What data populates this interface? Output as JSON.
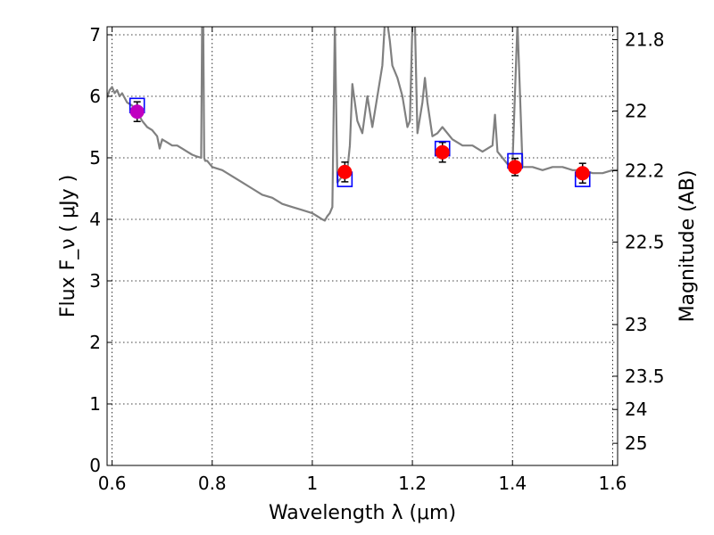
{
  "chart_data": {
    "type": "scatter",
    "title": "",
    "xlabel": "Wavelength  λ (μm)",
    "ylabel": "Flux  F_ν  ( μJy )",
    "ylabel_right": "Magnitude (AB)",
    "xlim": [
      0.59,
      1.61
    ],
    "ylim": [
      0,
      7.13
    ],
    "x_ticks": [
      0.6,
      0.8,
      1.0,
      1.2,
      1.4,
      1.6
    ],
    "x_tick_labels": [
      "0.6",
      "0.8",
      "1",
      "1.2",
      "1.4",
      "1.6"
    ],
    "y_ticks": [
      0,
      1,
      2,
      3,
      4,
      5,
      6,
      7
    ],
    "y_tick_labels": [
      "0",
      "1",
      "2",
      "3",
      "4",
      "5",
      "6",
      "7"
    ],
    "right_ticks": [
      {
        "label": "21.8",
        "flux": 6.92
      },
      {
        "label": "22",
        "flux": 5.76
      },
      {
        "label": "22.2",
        "flux": 4.79
      },
      {
        "label": "22.5",
        "flux": 3.63
      },
      {
        "label": "23",
        "flux": 2.29
      },
      {
        "label": "23.5",
        "flux": 1.45
      },
      {
        "label": "24",
        "flux": 0.91
      },
      {
        "label": "25",
        "flux": 0.36
      }
    ],
    "grid": true,
    "colors": {
      "model": "#808080",
      "observed": "#ff0000",
      "observed_first": "#c000c0",
      "model_box": "#0000ff",
      "errorbar": "#000000"
    },
    "series": [
      {
        "kind": "model_spectrum",
        "x": [
          0.59,
          0.595,
          0.6,
          0.605,
          0.61,
          0.615,
          0.62,
          0.63,
          0.64,
          0.65,
          0.66,
          0.67,
          0.68,
          0.69,
          0.695,
          0.7,
          0.71,
          0.72,
          0.73,
          0.74,
          0.75,
          0.76,
          0.77,
          0.778,
          0.78,
          0.782,
          0.784,
          0.786,
          0.79,
          0.8,
          0.82,
          0.84,
          0.86,
          0.88,
          0.9,
          0.92,
          0.94,
          0.96,
          0.98,
          1.0,
          1.01,
          1.02,
          1.025,
          1.03,
          1.035,
          1.04,
          1.045,
          1.05,
          1.06,
          1.07,
          1.075,
          1.08,
          1.09,
          1.1,
          1.11,
          1.12,
          1.13,
          1.14,
          1.145,
          1.15,
          1.155,
          1.16,
          1.17,
          1.18,
          1.19,
          1.195,
          1.2,
          1.205,
          1.21,
          1.22,
          1.225,
          1.23,
          1.24,
          1.25,
          1.26,
          1.28,
          1.3,
          1.32,
          1.34,
          1.36,
          1.365,
          1.37,
          1.38,
          1.39,
          1.4,
          1.41,
          1.42,
          1.44,
          1.46,
          1.48,
          1.5,
          1.52,
          1.54,
          1.56,
          1.58,
          1.6,
          1.61
        ],
        "y": [
          5.98,
          6.1,
          6.15,
          6.05,
          6.1,
          6.0,
          6.05,
          5.9,
          5.85,
          5.75,
          5.6,
          5.5,
          5.45,
          5.35,
          5.15,
          5.3,
          5.25,
          5.2,
          5.2,
          5.15,
          5.1,
          5.05,
          5.02,
          5.0,
          7.2,
          7.2,
          5.0,
          4.95,
          4.95,
          4.85,
          4.8,
          4.7,
          4.6,
          4.5,
          4.4,
          4.35,
          4.25,
          4.2,
          4.15,
          4.1,
          4.05,
          4.0,
          3.98,
          4.05,
          4.1,
          4.2,
          7.2,
          4.6,
          4.7,
          4.8,
          5.2,
          6.2,
          5.6,
          5.4,
          6.0,
          5.5,
          6.0,
          6.5,
          7.2,
          7.2,
          6.9,
          6.5,
          6.3,
          6.0,
          5.5,
          5.6,
          7.2,
          7.2,
          5.4,
          5.9,
          6.3,
          5.9,
          5.35,
          5.4,
          5.5,
          5.3,
          5.2,
          5.2,
          5.1,
          5.2,
          5.7,
          5.1,
          5.0,
          4.9,
          4.9,
          7.2,
          4.85,
          4.85,
          4.8,
          4.85,
          4.85,
          4.8,
          4.8,
          4.75,
          4.75,
          4.8,
          4.8
        ]
      },
      {
        "kind": "model_photometry",
        "marker": "open-square",
        "x": [
          0.65,
          1.065,
          1.26,
          1.405,
          1.54
        ],
        "y": [
          5.85,
          4.65,
          5.15,
          4.95,
          4.65
        ]
      },
      {
        "kind": "observed_photometry",
        "marker": "filled-circle",
        "x": [
          0.65,
          1.065,
          1.26,
          1.405,
          1.54
        ],
        "y": [
          5.75,
          4.77,
          5.09,
          4.85,
          4.75
        ],
        "yerr": [
          0.16,
          0.16,
          0.16,
          0.14,
          0.16
        ]
      }
    ]
  }
}
